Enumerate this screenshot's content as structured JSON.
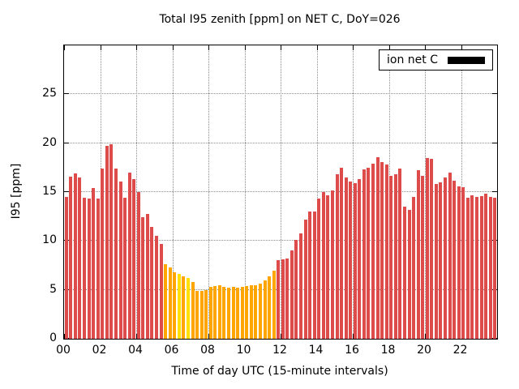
{
  "chart_data": {
    "type": "bar",
    "title": "Total I95 zenith [ppm] on NET C, DoY=026",
    "xlabel": "Time of day UTC (15-minute intervals)",
    "ylabel": "I95 [ppm]",
    "xlim": [
      0,
      24
    ],
    "ylim": [
      0,
      30
    ],
    "grid": true,
    "interval_minutes": 15,
    "time_range": [
      "00:00",
      "23:45"
    ],
    "x_ticks": [
      "00",
      "02",
      "04",
      "06",
      "08",
      "10",
      "12",
      "14",
      "16",
      "18",
      "20",
      "22"
    ],
    "y_ticks": [
      0,
      5,
      10,
      15,
      20,
      25
    ],
    "legend": {
      "label": "ion net C",
      "swatch_color": "#000000",
      "position": "top-right"
    },
    "colors": {
      "red": "#dd4b4b",
      "orange": "#ffa500",
      "yellow": "#ffe100"
    },
    "values": [
      14.5,
      16.6,
      16.9,
      16.5,
      14.4,
      14.3,
      15.4,
      14.3,
      17.4,
      19.7,
      19.9,
      17.4,
      16.1,
      14.4,
      17.0,
      16.3,
      15.0,
      12.4,
      12.8,
      11.4,
      10.5,
      9.7,
      7.6,
      7.3,
      6.8,
      6.6,
      6.4,
      6.2,
      5.8,
      4.9,
      4.9,
      5.0,
      5.3,
      5.4,
      5.5,
      5.3,
      5.2,
      5.3,
      5.2,
      5.3,
      5.4,
      5.5,
      5.5,
      5.6,
      6.0,
      6.4,
      7.0,
      8.0,
      8.1,
      8.2,
      9.0,
      10.1,
      10.8,
      12.2,
      13.0,
      13.0,
      14.3,
      15.0,
      14.7,
      15.2,
      16.8,
      17.5,
      16.5,
      16.1,
      15.9,
      16.3,
      17.3,
      17.5,
      17.9,
      18.6,
      18.1,
      17.8,
      16.7,
      16.8,
      17.4,
      13.5,
      13.2,
      14.5,
      17.2,
      16.7,
      18.5,
      18.4,
      15.8,
      16.0,
      16.5,
      17.0,
      16.2,
      15.6,
      15.5,
      14.4,
      14.7,
      14.5,
      14.6,
      14.8,
      14.5,
      14.4
    ],
    "bar_colors": [
      "red",
      "red",
      "red",
      "red",
      "red",
      "red",
      "red",
      "red",
      "red",
      "red",
      "red",
      "red",
      "red",
      "red",
      "red",
      "red",
      "red",
      "red",
      "red",
      "red",
      "red",
      "red",
      "orange",
      "orange",
      "orange",
      "yellow",
      "orange",
      "yellow",
      "orange",
      "orange",
      "orange",
      "orange",
      "orange",
      "orange",
      "orange",
      "orange",
      "orange",
      "orange",
      "orange",
      "orange",
      "orange",
      "orange",
      "orange",
      "orange",
      "orange",
      "orange",
      "orange",
      "red",
      "red",
      "red",
      "red",
      "red",
      "red",
      "red",
      "red",
      "red",
      "red",
      "red",
      "red",
      "red",
      "red",
      "red",
      "red",
      "red",
      "red",
      "red",
      "red",
      "red",
      "red",
      "red",
      "red",
      "red",
      "red",
      "red",
      "red",
      "red",
      "red",
      "red",
      "red",
      "red",
      "red",
      "red",
      "red",
      "red",
      "red",
      "red",
      "red",
      "red",
      "red",
      "red",
      "red",
      "red",
      "red",
      "red",
      "red",
      "red"
    ]
  }
}
